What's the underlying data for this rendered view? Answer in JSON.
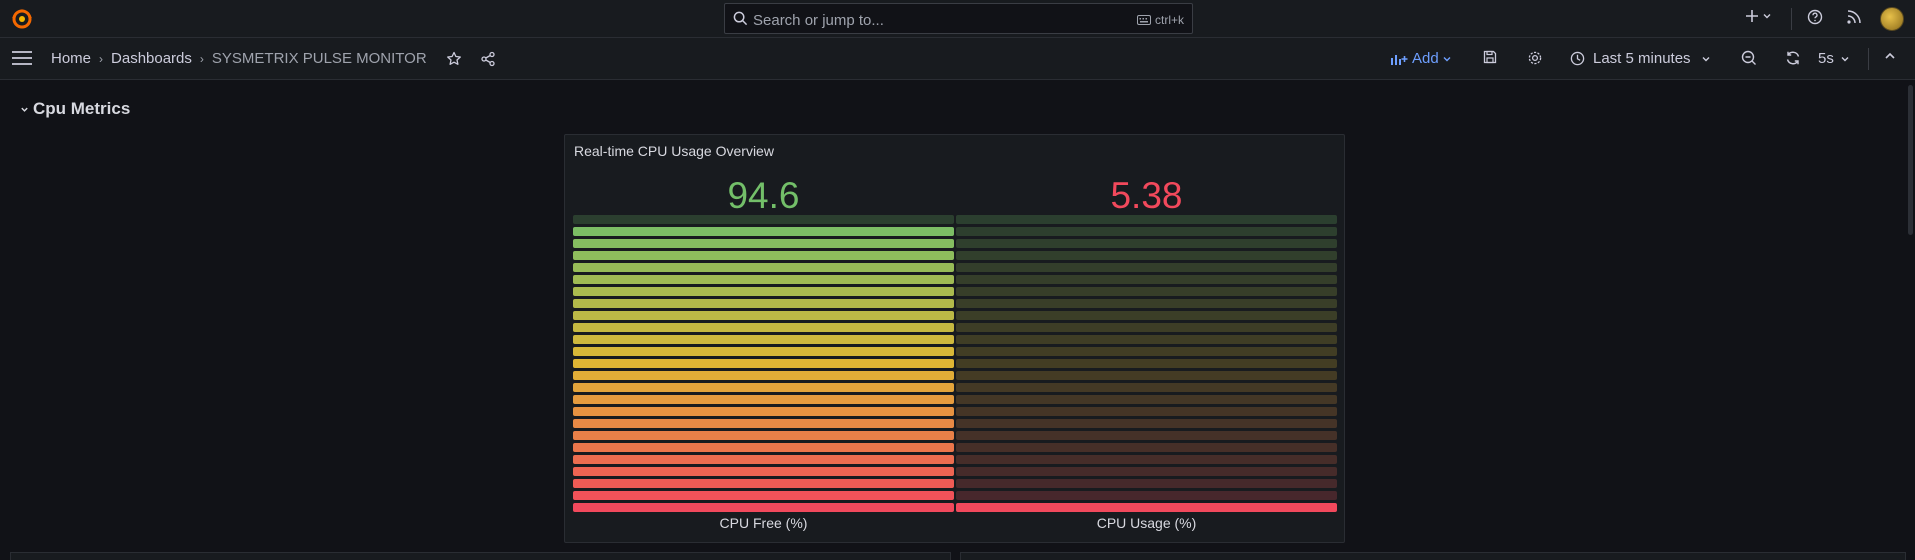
{
  "search": {
    "placeholder": "Search or jump to...",
    "shortcut": "ctrl+k"
  },
  "breadcrumbs": [
    {
      "label": "Home"
    },
    {
      "label": "Dashboards"
    },
    {
      "label": "SYSMETRIX PULSE MONITOR"
    }
  ],
  "toolbar": {
    "add_label": "Add",
    "time_range": "Last 5 minutes",
    "refresh_interval": "5s"
  },
  "section": {
    "title": "Cpu Metrics"
  },
  "panel": {
    "title": "Real-time CPU Usage Overview",
    "gauges": [
      {
        "label": "CPU Free (%)",
        "value": "94.6",
        "fraction": 0.946,
        "color": "#73bf69"
      },
      {
        "label": "CPU Usage (%)",
        "value": "5.38",
        "fraction": 0.0538,
        "color": "#f2495c"
      }
    ]
  },
  "colors": {
    "accent": "#6e9fff",
    "green": "#73bf69",
    "red": "#f2495c",
    "logo": "#f46800"
  },
  "chart_data": {
    "type": "bar",
    "categories": [
      "CPU Free (%)",
      "CPU Usage (%)"
    ],
    "values": [
      94.6,
      5.38
    ],
    "title": "Real-time CPU Usage Overview",
    "ylim": [
      0,
      100
    ]
  }
}
